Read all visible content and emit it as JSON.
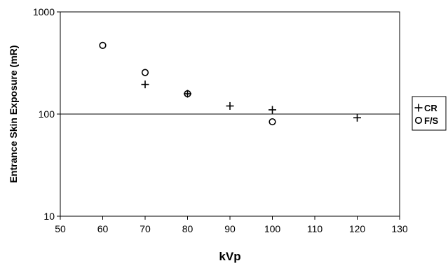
{
  "chart_data": {
    "type": "scatter",
    "title": "",
    "xlabel": "kVp",
    "ylabel": "Entrance Skin Exposure (mR)",
    "xlim": [
      50,
      130
    ],
    "ylim": [
      10,
      1000
    ],
    "y_scale": "log",
    "x_ticks": [
      "50",
      "60",
      "70",
      "80",
      "90",
      "100",
      "110",
      "120",
      "130"
    ],
    "y_ticks": [
      "10",
      "100",
      "1000"
    ],
    "grid": "horizontal major gridlines",
    "legend_position": "right",
    "series": [
      {
        "name": "CR",
        "marker": "plus",
        "x": [
          70,
          80,
          90,
          100,
          120
        ],
        "y": [
          195,
          158,
          120,
          110,
          92
        ]
      },
      {
        "name": "F/S",
        "marker": "circle",
        "x": [
          60,
          70,
          80,
          100
        ],
        "y": [
          470,
          255,
          158,
          84
        ]
      }
    ],
    "colors": {
      "axis": "#000000",
      "marker": "#000000",
      "background": "#ffffff"
    }
  }
}
